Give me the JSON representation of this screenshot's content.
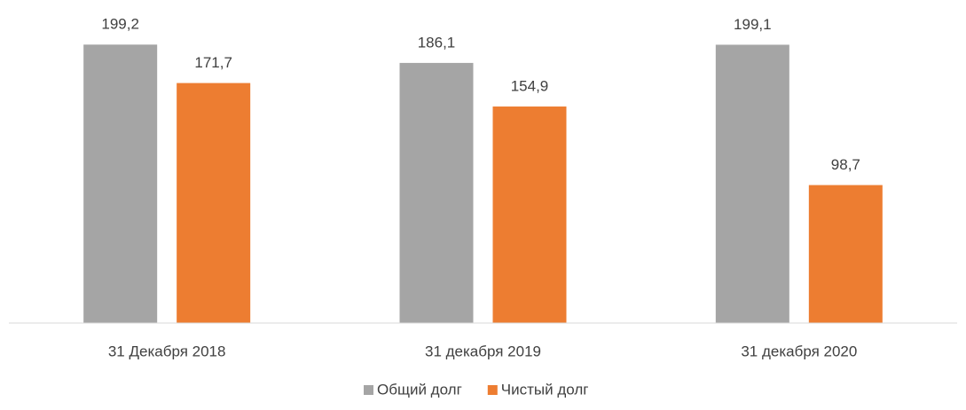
{
  "chart_data": {
    "type": "bar",
    "categories": [
      "31 Декабря 2018",
      "31 декабря 2019",
      "31 декабря 2020"
    ],
    "series": [
      {
        "name": "Общий долг",
        "color": "#a5a5a5",
        "values": [
          199.2,
          186.1,
          199.1
        ],
        "value_labels": [
          "199,2",
          "186,1",
          "199,1"
        ]
      },
      {
        "name": "Чистый долг",
        "color": "#ed7d31",
        "values": [
          171.7,
          154.9,
          98.7
        ],
        "value_labels": [
          "171,7",
          "154,9",
          "98,7"
        ]
      }
    ],
    "ylim": [
      0,
      200
    ],
    "legend": "bottom"
  }
}
